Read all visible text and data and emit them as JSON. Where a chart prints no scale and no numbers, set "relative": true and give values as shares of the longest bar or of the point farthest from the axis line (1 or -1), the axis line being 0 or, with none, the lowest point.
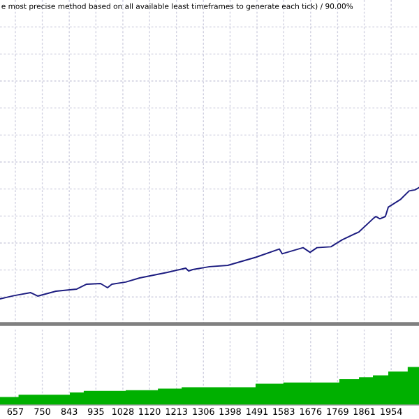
{
  "chart_data": [
    {
      "type": "line",
      "relative": true,
      "annotations": [
        "e most precise method based on all available least timeframes to generate each tick) / 90.00%"
      ],
      "grid": true,
      "tick_labels": false,
      "xlim": [
        604,
        2050
      ],
      "xticks": [
        657,
        750,
        843,
        935,
        1028,
        1120,
        1213,
        1306,
        1398,
        1491,
        1583,
        1676,
        1769,
        1861,
        1954
      ],
      "x": [
        604,
        652,
        710,
        734,
        797,
        869,
        903,
        951,
        975,
        990,
        1038,
        1086,
        1182,
        1245,
        1255,
        1269,
        1327,
        1390,
        1486,
        1568,
        1578,
        1650,
        1674,
        1698,
        1746,
        1785,
        1843,
        1891,
        1901,
        1915,
        1934,
        1944,
        1987,
        2016,
        2036,
        2050
      ],
      "series": [
        {
          "color": "#1c1c80",
          "values": [
            0,
            0.029,
            0.056,
            0.025,
            0.069,
            0.088,
            0.132,
            0.138,
            0.1,
            0.132,
            0.151,
            0.188,
            0.238,
            0.276,
            0.251,
            0.263,
            0.289,
            0.301,
            0.373,
            0.448,
            0.405,
            0.46,
            0.418,
            0.46,
            0.468,
            0.531,
            0.602,
            0.719,
            0.74,
            0.719,
            0.74,
            0.824,
            0.895,
            0.97,
            0.979,
            1.0
          ]
        }
      ]
    },
    {
      "type": "area",
      "relative": true,
      "grid": "x",
      "tick_labels": "x",
      "xlim": [
        604,
        2050
      ],
      "xticks": [
        657,
        750,
        843,
        935,
        1028,
        1120,
        1213,
        1306,
        1398,
        1491,
        1583,
        1676,
        1769,
        1861,
        1954
      ],
      "x": [
        604,
        668,
        668,
        845,
        845,
        893,
        893,
        1038,
        1038,
        1149,
        1149,
        1231,
        1231,
        1486,
        1486,
        1582,
        1582,
        1775,
        1775,
        1843,
        1843,
        1891,
        1891,
        1944,
        1944,
        2011,
        2011,
        2050
      ],
      "series": [
        {
          "color": "#00b000",
          "values": [
            0.21,
            0.21,
            0.27,
            0.27,
            0.33,
            0.33,
            0.37,
            0.37,
            0.39,
            0.39,
            0.43,
            0.43,
            0.47,
            0.47,
            0.56,
            0.56,
            0.59,
            0.59,
            0.68,
            0.68,
            0.73,
            0.73,
            0.78,
            0.78,
            0.88,
            0.88,
            1.0,
            1.0
          ]
        }
      ]
    }
  ]
}
